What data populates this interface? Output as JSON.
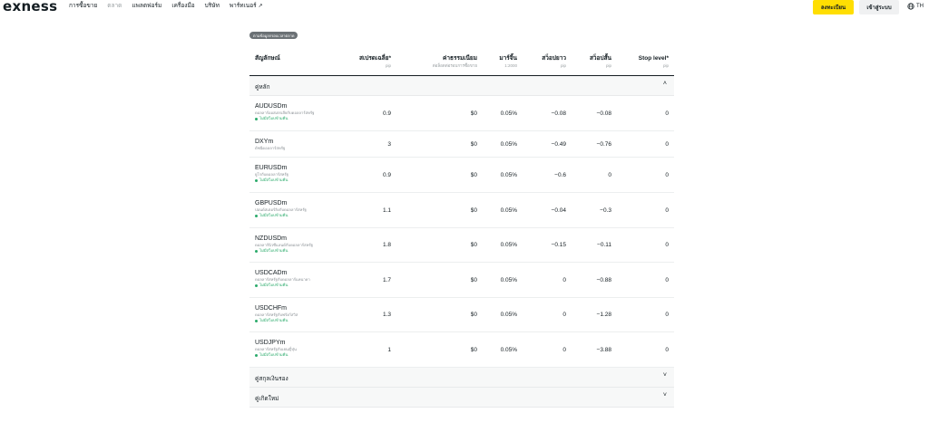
{
  "header": {
    "logo": "exness",
    "nav": [
      {
        "label": "การซื้อขาย",
        "active": false,
        "external": false
      },
      {
        "label": "ตลาด",
        "active": true,
        "external": false
      },
      {
        "label": "แพลตฟอร์ม",
        "active": false,
        "external": false
      },
      {
        "label": "เครื่องมือ",
        "active": false,
        "external": false
      },
      {
        "label": "บริษัท",
        "active": false,
        "external": false
      },
      {
        "label": "พาร์ทเนอร์",
        "active": false,
        "external": true
      }
    ],
    "external_arrow": "↗",
    "register_label": "ลงทะเบียน",
    "login_label": "เข้าสู่ระบบ",
    "lang_label": "TH",
    "colors": {
      "accent": "#ffde02",
      "active_nav": "#9aa0a3",
      "positive": "#2cab6c"
    }
  },
  "badge": "ตามข้อมูลกรอบเวลาตลาด",
  "columns": {
    "symbol": "สัญลักษณ์",
    "spread": "สเปรดเฉลี่ย*",
    "spread_sub": "pip",
    "commission": "ค่าธรรมเนียม",
    "commission_sub": "ต่อล็อตต่อรอบการซื้อขาย",
    "margin": "มาร์จิ้น",
    "margin_sub": "1:2000",
    "swap_long": "สว็อปยาว",
    "swap_long_sub": "pip",
    "swap_short": "สว็อปสั้น",
    "swap_short_sub": "pip",
    "stop_level": "Stop level*",
    "stop_level_sub": "pip"
  },
  "groups": [
    {
      "label": "คู่หลัก",
      "expanded": true,
      "chevron": "˄"
    },
    {
      "label": "คู่สกุลเงินรอง",
      "expanded": false,
      "chevron": "˅"
    },
    {
      "label": "คู่เกิดใหม่",
      "expanded": false,
      "chevron": "˅"
    }
  ],
  "rows": [
    {
      "symbol": "AUDUSDm",
      "desc": "ดอลลาร์ออสเตรเลียกับดอลลาร์สหรัฐ",
      "flag": "ไม่มีสว็อปข้ามคืน",
      "spread": "0.9",
      "commission": "$0",
      "margin": "0.05%",
      "swap_long": "−0.08",
      "swap_short": "−0.08",
      "stop_level": "0"
    },
    {
      "symbol": "DXYm",
      "desc": "ดัชนีดอลลาร์สหรัฐ",
      "flag": "",
      "spread": "3",
      "commission": "$0",
      "margin": "0.05%",
      "swap_long": "−0.49",
      "swap_short": "−0.76",
      "stop_level": "0"
    },
    {
      "symbol": "EURUSDm",
      "desc": "ยูโรกับดอลลาร์สหรัฐ",
      "flag": "ไม่มีสว็อปข้ามคืน",
      "spread": "0.9",
      "commission": "$0",
      "margin": "0.05%",
      "swap_long": "−0.6",
      "swap_short": "0",
      "stop_level": "0"
    },
    {
      "symbol": "GBPUSDm",
      "desc": "ปอนด์สเตอร์ลิงกับดอลลาร์สหรัฐ",
      "flag": "ไม่มีสว็อปข้ามคืน",
      "spread": "1.1",
      "commission": "$0",
      "margin": "0.05%",
      "swap_long": "−0.04",
      "swap_short": "−0.3",
      "stop_level": "0"
    },
    {
      "symbol": "NZDUSDm",
      "desc": "ดอลลาร์นิวซีแลนด์กับดอลลาร์สหรัฐ",
      "flag": "ไม่มีสว็อปข้ามคืน",
      "spread": "1.8",
      "commission": "$0",
      "margin": "0.05%",
      "swap_long": "−0.15",
      "swap_short": "−0.11",
      "stop_level": "0"
    },
    {
      "symbol": "USDCADm",
      "desc": "ดอลลาร์สหรัฐกับดอลลาร์แคนาดา",
      "flag": "ไม่มีสว็อปข้ามคืน",
      "spread": "1.7",
      "commission": "$0",
      "margin": "0.05%",
      "swap_long": "0",
      "swap_short": "−0.88",
      "stop_level": "0"
    },
    {
      "symbol": "USDCHFm",
      "desc": "ดอลลาร์สหรัฐกับฟรังก์สวิส",
      "flag": "ไม่มีสว็อปข้ามคืน",
      "spread": "1.3",
      "commission": "$0",
      "margin": "0.05%",
      "swap_long": "0",
      "swap_short": "−1.28",
      "stop_level": "0"
    },
    {
      "symbol": "USDJPYm",
      "desc": "ดอลลาร์สหรัฐกับเยนญี่ปุ่น",
      "flag": "ไม่มีสว็อปข้ามคืน",
      "spread": "1",
      "commission": "$0",
      "margin": "0.05%",
      "swap_long": "0",
      "swap_short": "−3.88",
      "stop_level": "0"
    }
  ]
}
